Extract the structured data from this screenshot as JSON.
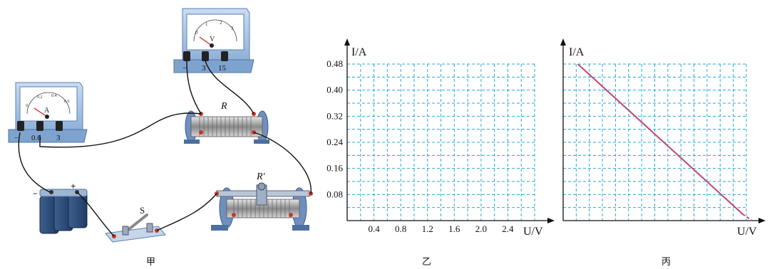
{
  "circuit": {
    "caption": "甲",
    "voltmeter": {
      "unit": "V",
      "terminals": [
        "−",
        "3",
        "15"
      ],
      "scale": [
        "0",
        "1",
        "2",
        "3"
      ]
    },
    "ammeter": {
      "unit": "A",
      "terminals": [
        "−",
        "0.6",
        "3"
      ],
      "scale": [
        "0",
        "0.2",
        "0.4",
        "0.6"
      ]
    },
    "resistor_label": "R",
    "rheostat_label": "R′",
    "switch_label": "S",
    "battery_plus": "+",
    "battery_minus": "−"
  },
  "chart_data": [
    {
      "type": "line",
      "caption": "乙",
      "xlabel": "U/V",
      "ylabel": "I/A",
      "xlim": [
        0,
        2.8
      ],
      "ylim": [
        0,
        0.48
      ],
      "xticks": [
        0.4,
        0.8,
        1.2,
        1.6,
        2.0,
        2.4
      ],
      "yticks": [
        0.08,
        0.16,
        0.24,
        0.32,
        0.4,
        0.48
      ],
      "xtick_labels": [
        "0.4",
        "0.8",
        "1.2",
        "1.6",
        "2.0",
        "2.4"
      ],
      "ytick_labels": [
        "0.08",
        "0.16",
        "0.24",
        "0.32",
        "0.40",
        "0.48"
      ],
      "grid": "dashed",
      "grid_color": "#2aa7d8",
      "series": []
    },
    {
      "type": "line",
      "caption": "丙",
      "xlabel": "U/V",
      "ylabel": "I/A",
      "grid": "dashed",
      "grid_color": "#2aa7d8",
      "line_color": "#c0457a",
      "series": [
        {
          "x": [
            0.08,
            0.98
          ],
          "y": [
            0.48,
            0.02
          ],
          "style": "solid"
        },
        {
          "x": [
            0.98,
            1.03
          ],
          "y": [
            0.02,
            0.0
          ],
          "style": "dashed"
        }
      ]
    }
  ]
}
